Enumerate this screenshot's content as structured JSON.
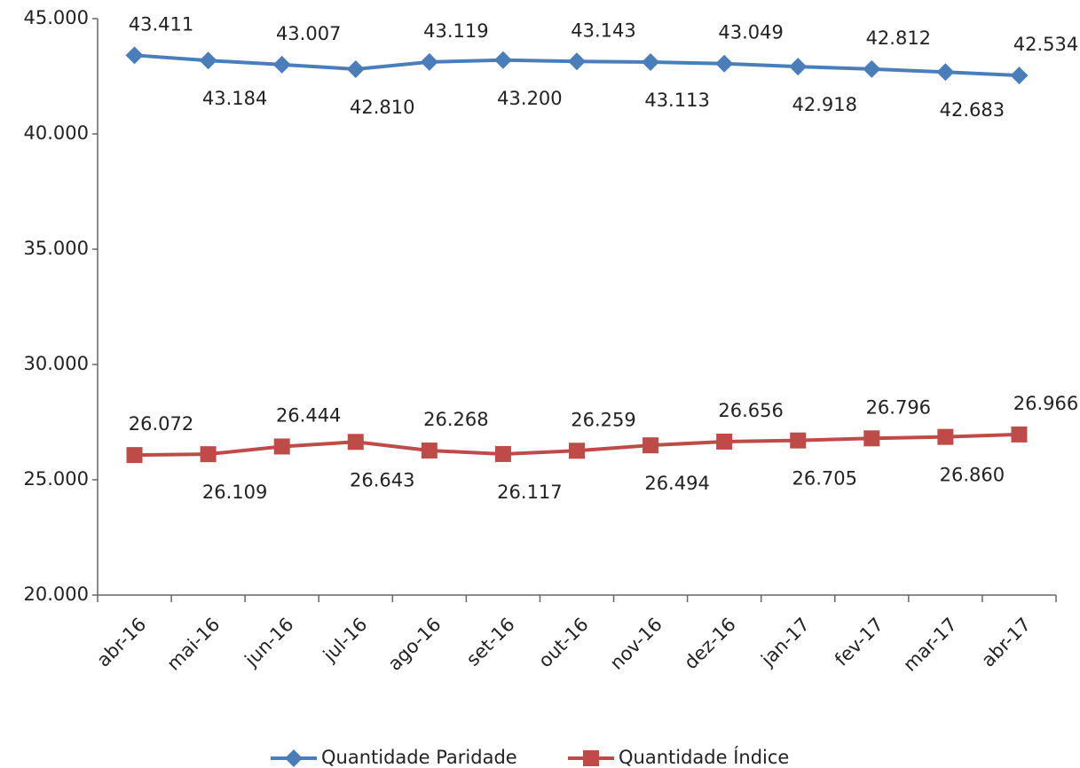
{
  "chart_data": {
    "type": "line",
    "categories": [
      "abr-16",
      "mai-16",
      "jun-16",
      "jul-16",
      "ago-16",
      "set-16",
      "out-16",
      "nov-16",
      "dez-16",
      "jan-17",
      "fev-17",
      "mar-17",
      "abr-17"
    ],
    "series": [
      {
        "name": "Quantidade Paridade",
        "color": "#4a7ebb",
        "marker": "diamond",
        "values": [
          43411,
          43184,
          43007,
          42810,
          43119,
          43200,
          43143,
          43113,
          43049,
          42918,
          42812,
          42683,
          42534
        ],
        "value_labels": [
          "43.411",
          "43.184",
          "43.007",
          "42.810",
          "43.119",
          "43.200",
          "43.143",
          "43.113",
          "43.049",
          "42.918",
          "42.812",
          "42.683",
          "42.534"
        ]
      },
      {
        "name": "Quantidade Índice",
        "color": "#be4b48",
        "marker": "square",
        "values": [
          26072,
          26109,
          26444,
          26643,
          26268,
          26117,
          26259,
          26494,
          26656,
          26705,
          26796,
          26860,
          26966
        ],
        "value_labels": [
          "26.072",
          "26.109",
          "26.444",
          "26.643",
          "26.268",
          "26.117",
          "26.259",
          "26.494",
          "26.656",
          "26.705",
          "26.796",
          "26.860",
          "26.966"
        ]
      }
    ],
    "ylim": [
      20000,
      45000
    ],
    "yticks": [
      {
        "value": 20000,
        "label": "20.000"
      },
      {
        "value": 25000,
        "label": "25.000"
      },
      {
        "value": 30000,
        "label": "30.000"
      },
      {
        "value": 35000,
        "label": "35.000"
      },
      {
        "value": 40000,
        "label": "40.000"
      },
      {
        "value": 45000,
        "label": "45.000"
      }
    ],
    "grid": false,
    "legend": "bottom"
  }
}
